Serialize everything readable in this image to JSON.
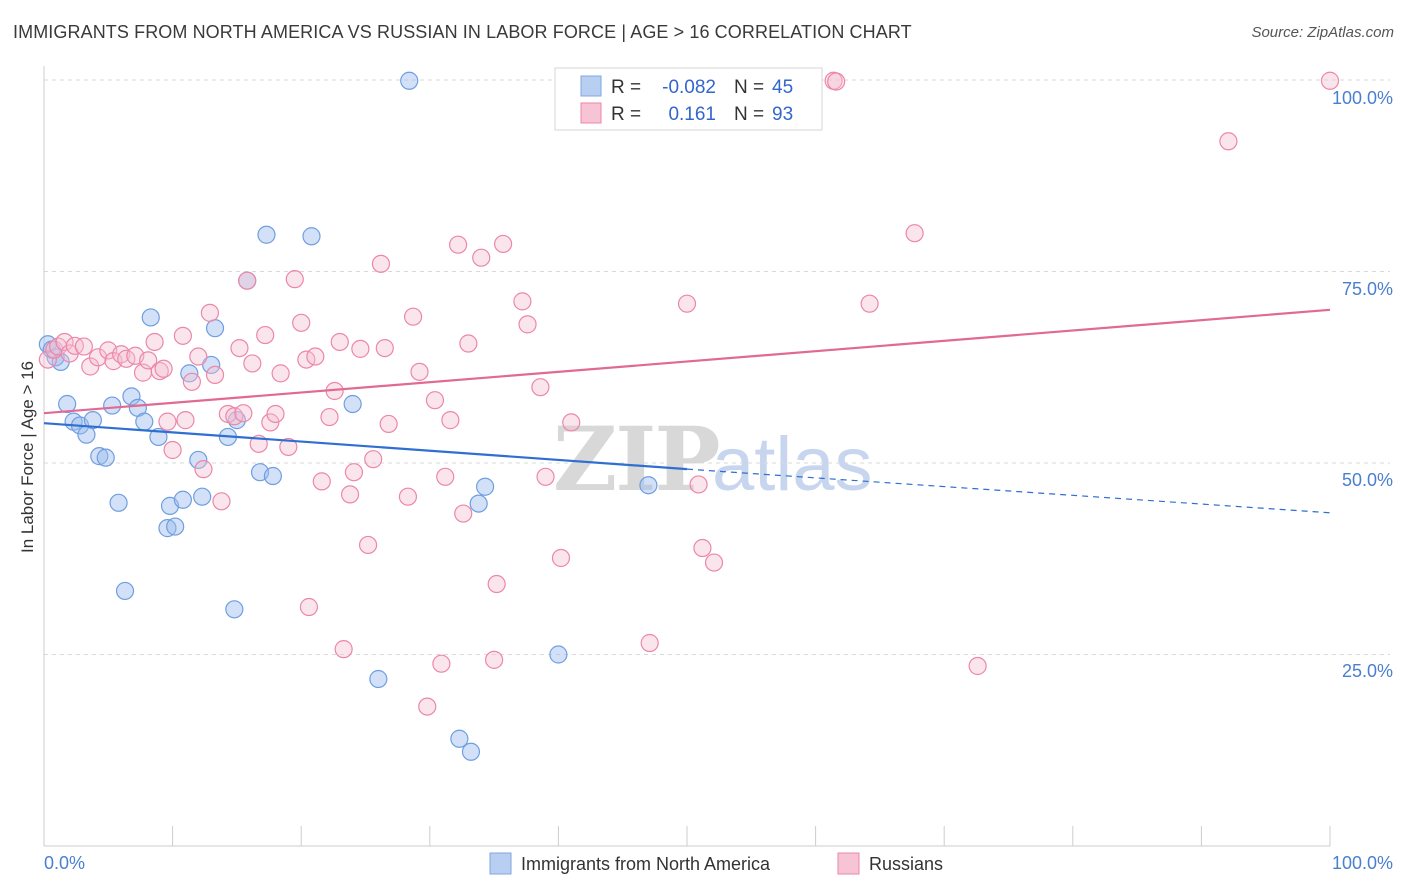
{
  "title": "IMMIGRANTS FROM NORTH AMERICA VS RUSSIAN IN LABOR FORCE | AGE > 16 CORRELATION CHART",
  "source": "Source: ZipAtlas.com",
  "watermark": {
    "zip": "ZIP",
    "atlas": "atlas"
  },
  "colors": {
    "blue": "#6f9ee0",
    "pink": "#ec87a8",
    "blue_line": "#2e6fd1",
    "pink_line": "#e06a94",
    "grid": "#d9d9d9",
    "tick": "#4a7fd0"
  },
  "stats": {
    "rows": [
      {
        "r_label": "R =",
        "r_value": "-0.082",
        "n_label": "N =",
        "n_value": "45"
      },
      {
        "r_label": "R =",
        "r_value": "0.161",
        "n_label": "N =",
        "n_value": "93"
      }
    ]
  },
  "legend": {
    "blue": "Immigrants from North America",
    "pink": "Russians"
  },
  "chart_data": {
    "type": "scatter",
    "title": "IMMIGRANTS FROM NORTH AMERICA VS RUSSIAN IN LABOR FORCE | AGE > 16 CORRELATION CHART",
    "xlabel": "",
    "ylabel": "In Labor Force | Age > 16",
    "xlim": [
      0,
      100
    ],
    "ylim": [
      0,
      100
    ],
    "x_tick_labels": [
      "0.0%",
      "100.0%"
    ],
    "y_tick_labels": [
      "100.0%",
      "75.0%",
      "50.0%",
      "25.0%"
    ],
    "y_tick_values": [
      100,
      75,
      50,
      25
    ],
    "grid": true,
    "legend_position": "bottom",
    "series": [
      {
        "name": "Immigrants from North America",
        "color": "#6f9ee0",
        "trend": {
          "x": [
            0,
            50
          ],
          "y": [
            55.2,
            49.2
          ],
          "dashed_to": [
            100,
            43.5
          ]
        },
        "points": [
          [
            0.3,
            65.5
          ],
          [
            0.6,
            64.8
          ],
          [
            0.9,
            63.8
          ],
          [
            1.3,
            63.2
          ],
          [
            1.8,
            57.7
          ],
          [
            2.3,
            55.4
          ],
          [
            2.8,
            54.9
          ],
          [
            3.3,
            53.7
          ],
          [
            3.8,
            55.6
          ],
          [
            4.3,
            50.9
          ],
          [
            4.8,
            50.7
          ],
          [
            5.3,
            57.5
          ],
          [
            5.8,
            44.8
          ],
          [
            6.3,
            33.3
          ],
          [
            6.8,
            58.7
          ],
          [
            7.3,
            57.2
          ],
          [
            7.8,
            55.4
          ],
          [
            8.3,
            69.0
          ],
          [
            8.9,
            53.4
          ],
          [
            9.6,
            41.5
          ],
          [
            9.8,
            44.4
          ],
          [
            10.2,
            41.7
          ],
          [
            10.8,
            45.2
          ],
          [
            11.3,
            61.7
          ],
          [
            12.0,
            50.4
          ],
          [
            12.3,
            45.6
          ],
          [
            13.0,
            62.8
          ],
          [
            13.3,
            67.6
          ],
          [
            14.3,
            53.4
          ],
          [
            14.8,
            30.9
          ],
          [
            15.0,
            55.6
          ],
          [
            15.8,
            73.8
          ],
          [
            16.8,
            48.8
          ],
          [
            17.3,
            79.8
          ],
          [
            17.8,
            48.3
          ],
          [
            20.8,
            79.6
          ],
          [
            24.0,
            57.7
          ],
          [
            26.0,
            21.8
          ],
          [
            28.4,
            99.9
          ],
          [
            32.3,
            14.0
          ],
          [
            33.2,
            12.3
          ],
          [
            33.8,
            44.7
          ],
          [
            34.3,
            46.9
          ],
          [
            40.0,
            25.0
          ],
          [
            47.0,
            47.1
          ]
        ]
      },
      {
        "name": "Russians",
        "color": "#ec87a8",
        "trend": {
          "x": [
            0,
            100
          ],
          "y": [
            56.5,
            70.0
          ]
        },
        "points": [
          [
            0.3,
            63.5
          ],
          [
            0.8,
            64.8
          ],
          [
            1.1,
            65.2
          ],
          [
            1.6,
            65.8
          ],
          [
            2.0,
            64.3
          ],
          [
            2.4,
            65.3
          ],
          [
            3.1,
            65.2
          ],
          [
            3.6,
            62.6
          ],
          [
            4.2,
            63.8
          ],
          [
            5.0,
            64.7
          ],
          [
            5.4,
            63.3
          ],
          [
            6.0,
            64.2
          ],
          [
            6.4,
            63.6
          ],
          [
            7.1,
            64.0
          ],
          [
            7.7,
            61.8
          ],
          [
            8.1,
            63.4
          ],
          [
            8.6,
            65.8
          ],
          [
            9.0,
            62.0
          ],
          [
            9.3,
            62.3
          ],
          [
            9.6,
            55.4
          ],
          [
            10.0,
            51.7
          ],
          [
            10.8,
            66.6
          ],
          [
            11.0,
            55.6
          ],
          [
            11.5,
            60.6
          ],
          [
            12.0,
            63.9
          ],
          [
            12.4,
            49.2
          ],
          [
            12.9,
            69.6
          ],
          [
            13.3,
            61.5
          ],
          [
            13.8,
            45.0
          ],
          [
            14.3,
            56.4
          ],
          [
            14.8,
            56.1
          ],
          [
            15.2,
            65.0
          ],
          [
            15.8,
            73.8
          ],
          [
            16.2,
            63.0
          ],
          [
            16.7,
            52.5
          ],
          [
            17.2,
            66.7
          ],
          [
            17.6,
            55.3
          ],
          [
            18.0,
            56.4
          ],
          [
            18.4,
            61.7
          ],
          [
            19.0,
            52.1
          ],
          [
            19.5,
            74.0
          ],
          [
            20.0,
            68.3
          ],
          [
            20.4,
            63.5
          ],
          [
            20.6,
            31.2
          ],
          [
            21.1,
            63.9
          ],
          [
            21.6,
            47.6
          ],
          [
            22.2,
            56.0
          ],
          [
            22.6,
            59.4
          ],
          [
            23.0,
            65.8
          ],
          [
            23.3,
            25.7
          ],
          [
            23.8,
            45.9
          ],
          [
            24.1,
            48.8
          ],
          [
            24.6,
            64.9
          ],
          [
            25.2,
            39.3
          ],
          [
            25.6,
            50.5
          ],
          [
            26.2,
            76.0
          ],
          [
            26.8,
            55.1
          ],
          [
            28.3,
            45.6
          ],
          [
            28.7,
            69.1
          ],
          [
            29.2,
            61.9
          ],
          [
            29.8,
            18.2
          ],
          [
            30.4,
            58.2
          ],
          [
            30.9,
            23.8
          ],
          [
            31.2,
            48.2
          ],
          [
            31.6,
            55.6
          ],
          [
            32.2,
            78.5
          ],
          [
            32.6,
            43.4
          ],
          [
            33.0,
            65.6
          ],
          [
            34.0,
            76.8
          ],
          [
            35.0,
            24.3
          ],
          [
            35.2,
            34.2
          ],
          [
            35.7,
            78.6
          ],
          [
            37.2,
            71.1
          ],
          [
            37.6,
            68.1
          ],
          [
            38.6,
            59.9
          ],
          [
            39.0,
            48.2
          ],
          [
            40.2,
            37.6
          ],
          [
            41.0,
            55.3
          ],
          [
            47.1,
            26.5
          ],
          [
            50.0,
            70.8
          ],
          [
            50.9,
            47.2
          ],
          [
            51.2,
            38.9
          ],
          [
            52.1,
            37.0
          ],
          [
            55.7,
            99.9
          ],
          [
            61.4,
            99.9
          ],
          [
            61.6,
            99.8
          ],
          [
            64.2,
            70.8
          ],
          [
            67.7,
            80.0
          ],
          [
            72.6,
            23.5
          ],
          [
            92.1,
            92.0
          ],
          [
            100.0,
            99.9
          ],
          [
            15.5,
            56.5
          ],
          [
            26.5,
            65.0
          ]
        ]
      }
    ]
  }
}
